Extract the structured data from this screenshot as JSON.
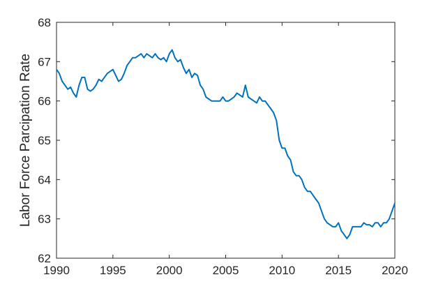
{
  "chart_data": {
    "type": "line",
    "title": "",
    "xlabel": "",
    "ylabel": "Labor Force Parcipation Rate",
    "xlim": [
      1990,
      2020
    ],
    "ylim": [
      62,
      68
    ],
    "x_ticks": [
      "1990",
      "1995",
      "2000",
      "2005",
      "2010",
      "2015",
      "2020"
    ],
    "y_ticks": [
      "62",
      "63",
      "64",
      "65",
      "66",
      "67",
      "68"
    ],
    "grid": false,
    "series": [
      {
        "color": "#0072BD",
        "x": [
          1990.0,
          1990.25,
          1990.5,
          1990.75,
          1991.0,
          1991.25,
          1991.5,
          1991.75,
          1992.0,
          1992.25,
          1992.5,
          1992.75,
          1993.0,
          1993.25,
          1993.5,
          1993.75,
          1994.0,
          1994.25,
          1994.5,
          1994.75,
          1995.0,
          1995.25,
          1995.5,
          1995.75,
          1996.0,
          1996.25,
          1996.5,
          1996.75,
          1997.0,
          1997.25,
          1997.5,
          1997.75,
          1998.0,
          1998.25,
          1998.5,
          1998.75,
          1999.0,
          1999.25,
          1999.5,
          1999.75,
          2000.0,
          2000.25,
          2000.5,
          2000.75,
          2001.0,
          2001.25,
          2001.5,
          2001.75,
          2002.0,
          2002.25,
          2002.5,
          2002.75,
          2003.0,
          2003.25,
          2003.5,
          2003.75,
          2004.0,
          2004.25,
          2004.5,
          2004.75,
          2005.0,
          2005.25,
          2005.5,
          2005.75,
          2006.0,
          2006.25,
          2006.5,
          2006.75,
          2007.0,
          2007.25,
          2007.5,
          2007.75,
          2008.0,
          2008.25,
          2008.5,
          2008.75,
          2009.0,
          2009.25,
          2009.5,
          2009.75,
          2010.0,
          2010.25,
          2010.5,
          2010.75,
          2011.0,
          2011.25,
          2011.5,
          2011.75,
          2012.0,
          2012.25,
          2012.5,
          2012.75,
          2013.0,
          2013.25,
          2013.5,
          2013.75,
          2014.0,
          2014.25,
          2014.5,
          2014.75,
          2015.0,
          2015.25,
          2015.5,
          2015.75,
          2016.0,
          2016.25,
          2016.5,
          2016.75,
          2017.0,
          2017.25,
          2017.5,
          2017.75,
          2018.0,
          2018.25,
          2018.5,
          2018.75,
          2019.0,
          2019.25,
          2019.5,
          2019.75,
          2020.0
        ],
        "values": [
          66.8,
          66.7,
          66.5,
          66.4,
          66.3,
          66.35,
          66.2,
          66.1,
          66.4,
          66.6,
          66.6,
          66.3,
          66.25,
          66.3,
          66.4,
          66.55,
          66.5,
          66.6,
          66.7,
          66.75,
          66.8,
          66.65,
          66.5,
          66.55,
          66.7,
          66.9,
          67.0,
          67.1,
          67.1,
          67.15,
          67.2,
          67.1,
          67.2,
          67.15,
          67.1,
          67.2,
          67.1,
          67.05,
          67.1,
          67.0,
          67.2,
          67.3,
          67.1,
          67.0,
          67.05,
          66.85,
          66.7,
          66.8,
          66.6,
          66.7,
          66.65,
          66.4,
          66.3,
          66.1,
          66.05,
          66.0,
          66.0,
          66.0,
          66.0,
          66.1,
          66.0,
          66.0,
          66.05,
          66.1,
          66.2,
          66.15,
          66.1,
          66.4,
          66.1,
          66.05,
          66.0,
          65.95,
          66.1,
          66.0,
          66.0,
          65.9,
          65.8,
          65.7,
          65.5,
          65.0,
          64.8,
          64.8,
          64.6,
          64.5,
          64.2,
          64.1,
          64.1,
          64.0,
          63.8,
          63.7,
          63.7,
          63.6,
          63.5,
          63.4,
          63.2,
          63.0,
          62.9,
          62.85,
          62.8,
          62.8,
          62.9,
          62.7,
          62.6,
          62.5,
          62.6,
          62.8,
          62.8,
          62.8,
          62.8,
          62.9,
          62.85,
          62.85,
          62.8,
          62.9,
          62.9,
          62.8,
          62.9,
          62.9,
          63.0,
          63.2,
          63.4
        ]
      }
    ]
  }
}
